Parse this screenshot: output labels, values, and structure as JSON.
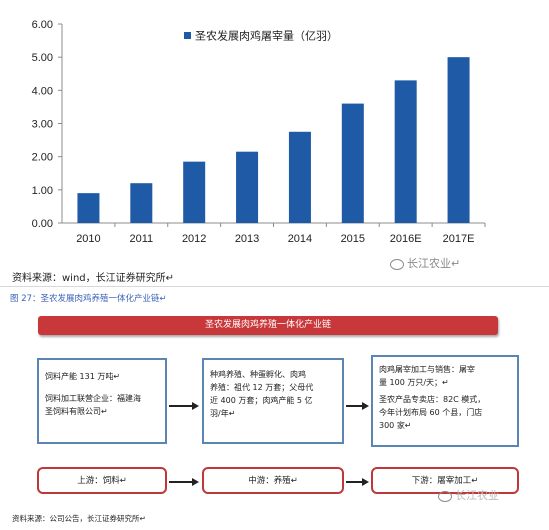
{
  "chart_data": {
    "type": "bar",
    "categories": [
      "2010",
      "2011",
      "2012",
      "2013",
      "2014",
      "2015",
      "2016E",
      "2017E"
    ],
    "series": [
      {
        "name": "圣农发展肉鸡屠宰量（亿羽）",
        "values": [
          0.9,
          1.2,
          1.85,
          2.15,
          2.75,
          3.6,
          4.3,
          5.0
        ]
      }
    ],
    "yticks": [
      "0.00",
      "1.00",
      "2.00",
      "3.00",
      "4.00",
      "5.00",
      "6.00"
    ],
    "ylim": [
      0,
      6
    ],
    "grid": false,
    "legend_position": "top-center",
    "bar_color": "#1f5aa6"
  },
  "source_line": "资料来源：wind，长江证券研究所↵",
  "watermark_1": "长江农业↵",
  "figure_caption": "图 27：圣农发展肉鸡养殖一体化产业链↵",
  "diagram": {
    "title": "圣农发展肉鸡养殖一体化产业链",
    "upstream_box": [
      "饲料产能 131 万吨↵",
      "饲料加工联营企业：福建海",
      "圣饲料有限公司↵"
    ],
    "midstream_box": [
      "种鸡养殖、种蛋孵化、肉鸡",
      "养殖：祖代 12 万套；父母代",
      "近 400 万套；肉鸡产能 5 亿",
      "羽/年↵"
    ],
    "downstream_box": [
      "肉鸡屠宰加工与销售：屠宰",
      "量 100 万只/天；↵",
      "圣农产品专卖店：82C 模式，",
      "今年计划布局 60 个县，门店",
      "300 家↵"
    ],
    "stages": [
      "上游：饲料↵",
      "中游：养殖↵",
      "下游：屠宰加工↵"
    ],
    "watermark": "长江农业"
  },
  "bottom_source": "资料来源：公司公告，长江证券研究所↵",
  "colors": {
    "accent_red": "#c8373a",
    "box_blue": "#5b85b5",
    "bar_blue": "#1f5aa6"
  }
}
